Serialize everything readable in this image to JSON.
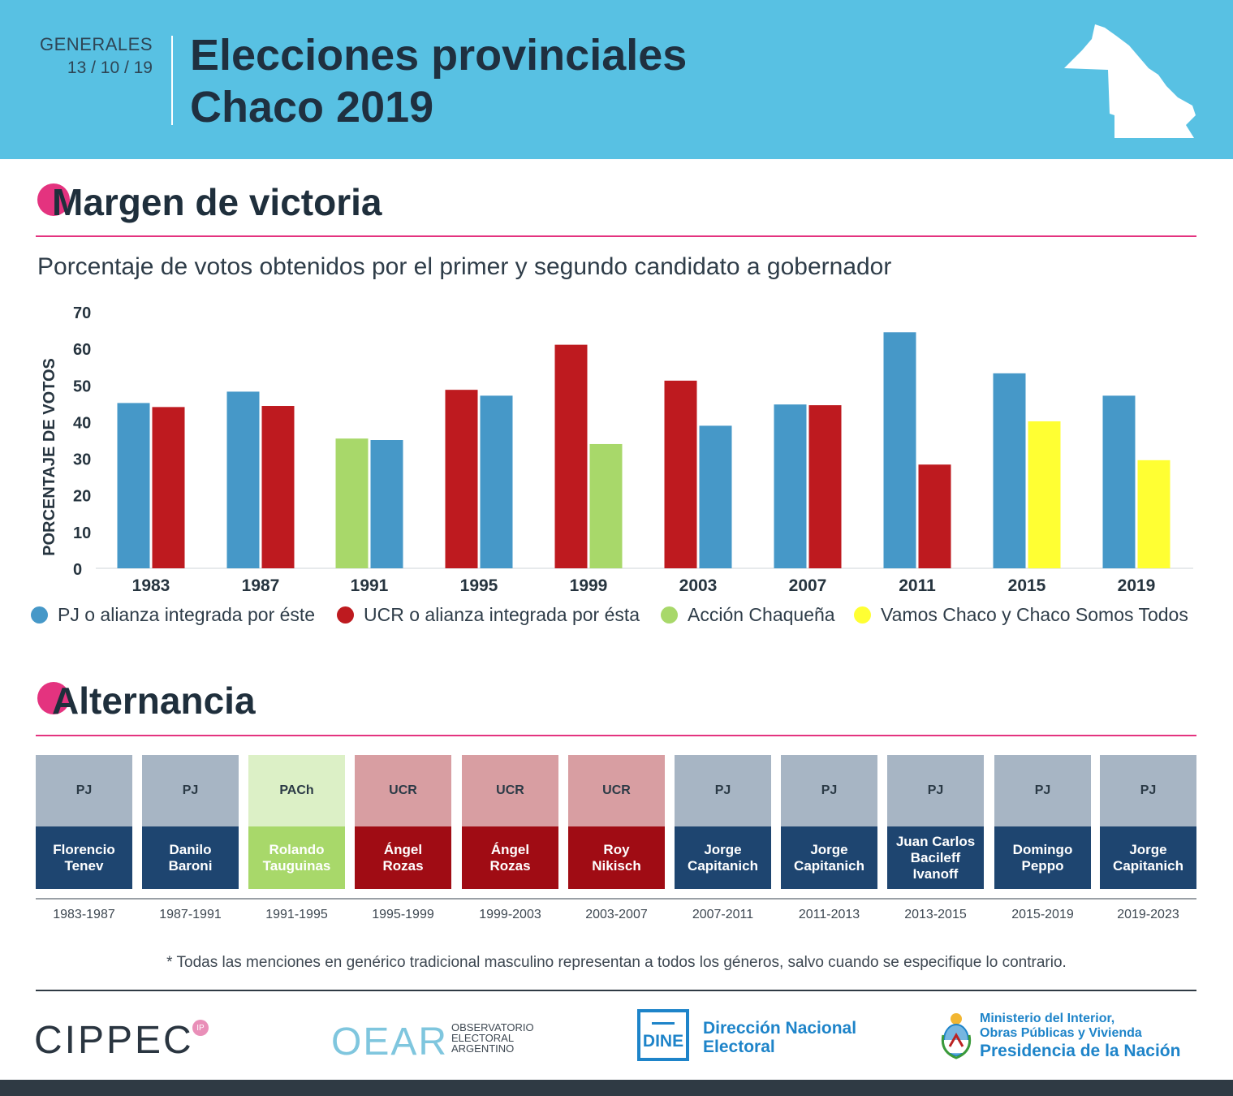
{
  "header": {
    "gen_label": "GENERALES",
    "gen_date": "13 / 10 / 19",
    "title_line1": "Elecciones provinciales",
    "title_line2": "Chaco 2019"
  },
  "section1": {
    "title": "Margen de victoria",
    "subtitle": "Porcentaje de votos obtenidos por el primer y segundo candidato a gobernador"
  },
  "chart_data": {
    "type": "bar",
    "title": "Porcentaje de votos obtenidos por el primer y segundo candidato a gobernador",
    "xlabel": "",
    "ylabel": "PORCENTAJE DE VOTOS",
    "ylim": [
      0,
      70
    ],
    "yticks": [
      0,
      10,
      20,
      30,
      40,
      50,
      60,
      70
    ],
    "categories": [
      "1983",
      "1987",
      "1991",
      "1995",
      "1999",
      "2003",
      "2007",
      "2011",
      "2015",
      "2019"
    ],
    "parties": {
      "PJ": {
        "name": "PJ o alianza integrada por éste",
        "color": "#4698c8"
      },
      "UCR": {
        "name": "UCR o alianza integrada por ésta",
        "color": "#be1a1f"
      },
      "AC": {
        "name": "Acción Chaqueña",
        "color": "#a8d86a"
      },
      "VC": {
        "name": "Vamos Chaco y Chaco Somos Todos",
        "color": "#ffff33"
      }
    },
    "bars": [
      {
        "year": "1983",
        "first": {
          "party": "PJ",
          "value": 45.1
        },
        "second": {
          "party": "UCR",
          "value": 44.0
        }
      },
      {
        "year": "1987",
        "first": {
          "party": "PJ",
          "value": 48.2
        },
        "second": {
          "party": "UCR",
          "value": 44.3
        }
      },
      {
        "year": "1991",
        "first": {
          "party": "AC",
          "value": 35.4
        },
        "second": {
          "party": "PJ",
          "value": 35.0
        }
      },
      {
        "year": "1995",
        "first": {
          "party": "UCR",
          "value": 48.7
        },
        "second": {
          "party": "PJ",
          "value": 47.1
        }
      },
      {
        "year": "1999",
        "first": {
          "party": "UCR",
          "value": 61.0
        },
        "second": {
          "party": "AC",
          "value": 33.9
        }
      },
      {
        "year": "2003",
        "first": {
          "party": "UCR",
          "value": 51.2
        },
        "second": {
          "party": "PJ",
          "value": 38.9
        }
      },
      {
        "year": "2007",
        "first": {
          "party": "PJ",
          "value": 44.7
        },
        "second": {
          "party": "UCR",
          "value": 44.5
        }
      },
      {
        "year": "2011",
        "first": {
          "party": "PJ",
          "value": 64.4
        },
        "second": {
          "party": "UCR",
          "value": 28.3
        }
      },
      {
        "year": "2015",
        "first": {
          "party": "PJ",
          "value": 53.2
        },
        "second": {
          "party": "VC",
          "value": 40.1
        }
      },
      {
        "year": "2019",
        "first": {
          "party": "PJ",
          "value": 47.1
        },
        "second": {
          "party": "VC",
          "value": 29.5
        }
      }
    ],
    "legend": [
      "PJ",
      "UCR",
      "AC",
      "VC"
    ]
  },
  "section2": {
    "title": "Alternancia",
    "terms": [
      {
        "party": "PJ",
        "name_lines": [
          "Florencio",
          "Tenev"
        ],
        "period": "1983-1987",
        "top_color": "#a7b5c4",
        "bottom_color": "#1e4570"
      },
      {
        "party": "PJ",
        "name_lines": [
          "Danilo",
          "Baroni"
        ],
        "period": "1987-1991",
        "top_color": "#a7b5c4",
        "bottom_color": "#1e4570"
      },
      {
        "party": "PACh",
        "name_lines": [
          "Rolando",
          "Tauguinas"
        ],
        "period": "1991-1995",
        "top_color": "#dcf0c6",
        "bottom_color": "#a8d86a"
      },
      {
        "party": "UCR",
        "name_lines": [
          "Ángel",
          "Rozas"
        ],
        "period": "1995-1999",
        "top_color": "#d89ea2",
        "bottom_color": "#a00c14"
      },
      {
        "party": "UCR",
        "name_lines": [
          "Ángel",
          "Rozas"
        ],
        "period": "1999-2003",
        "top_color": "#d89ea2",
        "bottom_color": "#a00c14"
      },
      {
        "party": "UCR",
        "name_lines": [
          "Roy",
          "Nikisch"
        ],
        "period": "2003-2007",
        "top_color": "#d89ea2",
        "bottom_color": "#a00c14"
      },
      {
        "party": "PJ",
        "name_lines": [
          "Jorge",
          "Capitanich"
        ],
        "period": "2007-2011",
        "top_color": "#a7b5c4",
        "bottom_color": "#1e4570"
      },
      {
        "party": "PJ",
        "name_lines": [
          "Jorge",
          "Capitanich"
        ],
        "period": "2011-2013",
        "top_color": "#a7b5c4",
        "bottom_color": "#1e4570"
      },
      {
        "party": "PJ",
        "name_lines": [
          "Juan Carlos",
          "Bacileff",
          "Ivanoff"
        ],
        "period": "2013-2015",
        "top_color": "#a7b5c4",
        "bottom_color": "#1e4570"
      },
      {
        "party": "PJ",
        "name_lines": [
          "Domingo",
          "Peppo"
        ],
        "period": "2015-2019",
        "top_color": "#a7b5c4",
        "bottom_color": "#1e4570"
      },
      {
        "party": "PJ",
        "name_lines": [
          "Jorge",
          "Capitanich"
        ],
        "period": "2019-2023",
        "top_color": "#a7b5c4",
        "bottom_color": "#1e4570"
      }
    ]
  },
  "footnote": "* Todas las menciones en genérico tradicional masculino representan a todos los géneros, salvo cuando se especifique lo contrario.",
  "logos": {
    "cippec": "CIPPEC",
    "cippec_mark": "IP",
    "oear": "OEAR",
    "oear_lines": [
      "OBSERVATORIO",
      "ELECTORAL",
      "ARGENTINO"
    ],
    "dine": "DINE",
    "dine_lines": [
      "Dirección Nacional",
      "Electoral"
    ],
    "ministerio_lines": [
      "Ministerio del Interior,",
      "Obras Públicas y Vivienda"
    ],
    "presidencia": "Presidencia de la Nación"
  }
}
